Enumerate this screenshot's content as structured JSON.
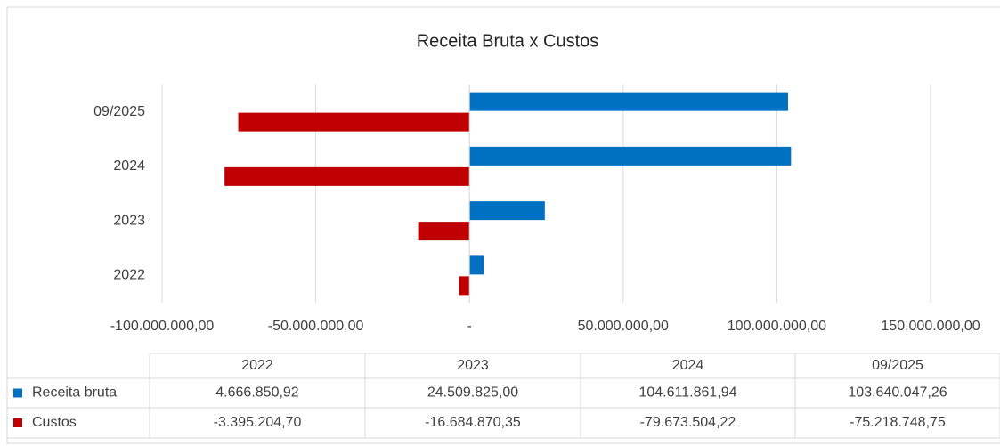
{
  "chart_data": {
    "type": "bar",
    "orientation": "horizontal",
    "title": "Receita Bruta x Custos",
    "categories": [
      "2022",
      "2023",
      "2024",
      "09/2025"
    ],
    "series": [
      {
        "name": "Receita bruta",
        "color": "#0070c0",
        "values": [
          4666850.92,
          24509825.0,
          104611861.94,
          103640047.26
        ],
        "value_labels": [
          "4.666.850,92",
          "24.509.825,00",
          "104.611.861,94",
          "103.640.047,26"
        ]
      },
      {
        "name": "Custos",
        "color": "#c00000",
        "values": [
          -3395204.7,
          -16684870.35,
          -79673504.22,
          -75218748.75
        ],
        "value_labels": [
          "-3.395.204,70",
          "-16.684.870,35",
          "-79.673.504,22",
          "-75.218.748,75"
        ]
      }
    ],
    "xlim": [
      -100000000,
      150000000
    ],
    "xticks": [
      {
        "value": -100000000,
        "label": "-100.000.000,00"
      },
      {
        "value": -50000000,
        "label": "-50.000.000,00"
      },
      {
        "value": 0,
        "label": "-"
      },
      {
        "value": 50000000,
        "label": "50.000.000,00"
      },
      {
        "value": 100000000,
        "label": "100.000.000,00"
      },
      {
        "value": 150000000,
        "label": "150.000.000,00"
      }
    ],
    "grid": true,
    "data_table": true
  }
}
